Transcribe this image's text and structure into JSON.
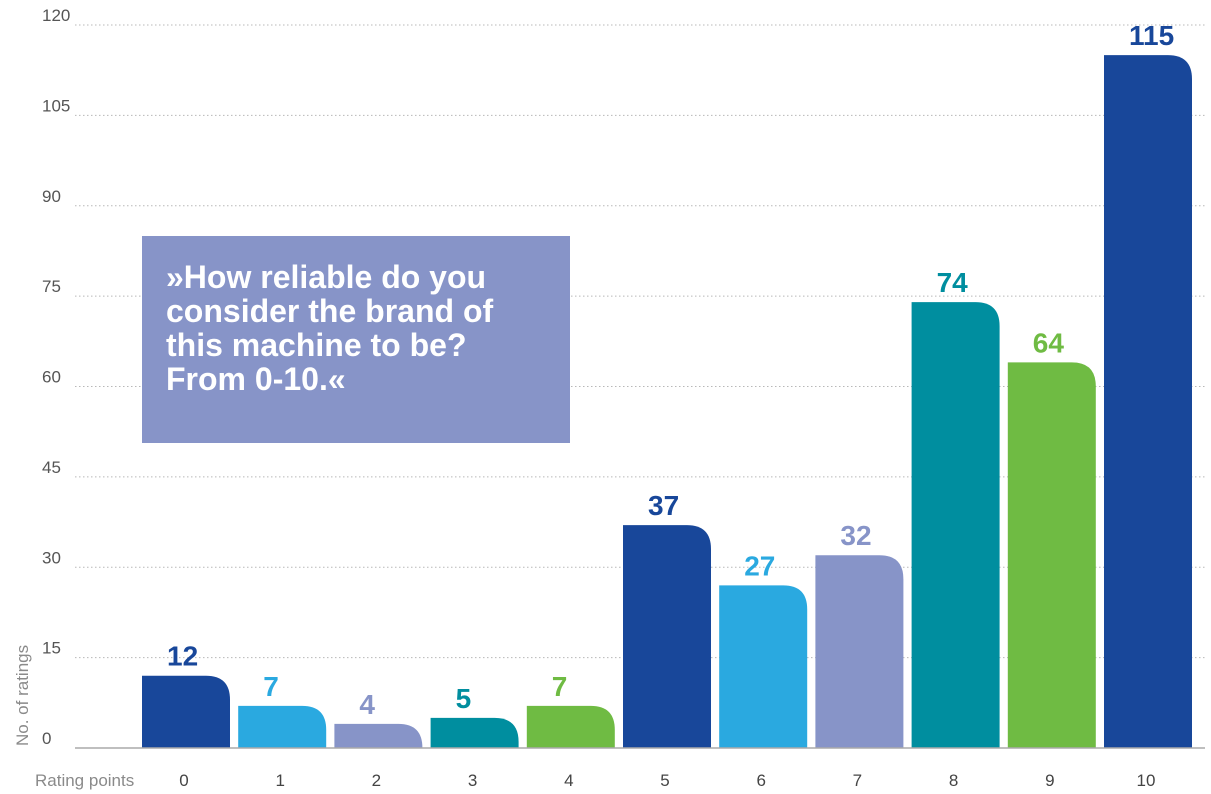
{
  "question": "»How reliable do you\nconsider the brand of\nthis machine to be?\nFrom 0-10.«",
  "chart_data": {
    "type": "bar",
    "xlabel": "Rating points",
    "ylabel": "No. of ratings",
    "categories": [
      "0",
      "1",
      "2",
      "3",
      "4",
      "5",
      "6",
      "7",
      "8",
      "9",
      "10"
    ],
    "values": [
      12,
      7,
      4,
      5,
      7,
      37,
      27,
      32,
      74,
      64,
      115
    ],
    "colors": [
      "#18479a",
      "#2aa9e0",
      "#8794c8",
      "#008e9f",
      "#6fbb43",
      "#18479a",
      "#2aa9e0",
      "#8794c8",
      "#008e9f",
      "#6fbb43",
      "#18479a"
    ],
    "yticks": [
      0,
      15,
      30,
      45,
      60,
      75,
      90,
      105,
      120
    ],
    "ylim": [
      0,
      120
    ],
    "grid": true,
    "legend": false
  }
}
